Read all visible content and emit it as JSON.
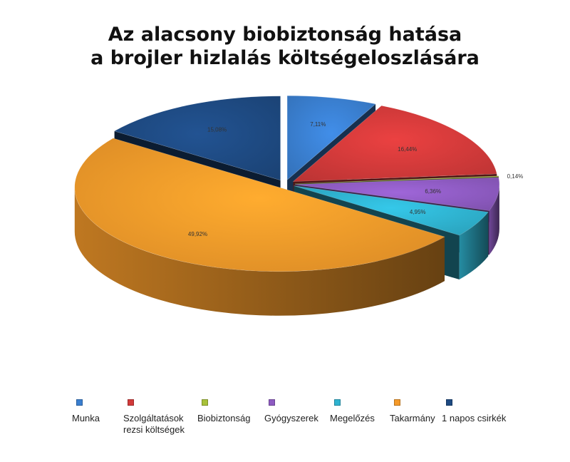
{
  "chart_data": {
    "type": "pie",
    "title": [
      "Az alacsony biobiztonság hatása",
      "a brojler hizlalás költségeloszlására"
    ],
    "categories": [
      "Munka",
      "Szolgáltatások rezsi költségek",
      "Biobiztonság",
      "Gyógyszerek",
      "Megelőzés",
      "Takarmány",
      "1 napos csirkék"
    ],
    "values": [
      7.11,
      16.44,
      0.14,
      6.36,
      4.95,
      49.92,
      15.08
    ],
    "data_labels": [
      "7,11%",
      "16,44%",
      "0,14%",
      "6,36%",
      "4,95%",
      "49,92%",
      "15,08%"
    ],
    "colors": [
      "#3a7fd0",
      "#d23a3a",
      "#a8c23a",
      "#8e5bc2",
      "#2fb3d0",
      "#f59a2a",
      "#1e4a82"
    ],
    "legend_labels": [
      [
        "Munka"
      ],
      [
        "Szolgáltatások",
        "rezsi költségek"
      ],
      [
        "Biobiztonság"
      ],
      [
        "Gyógyszerek"
      ],
      [
        "Megelőzés"
      ],
      [
        "Takarmány"
      ],
      [
        "1 napos csirkék"
      ]
    ],
    "legend_position": "bottom",
    "style": "3d-exploded"
  }
}
